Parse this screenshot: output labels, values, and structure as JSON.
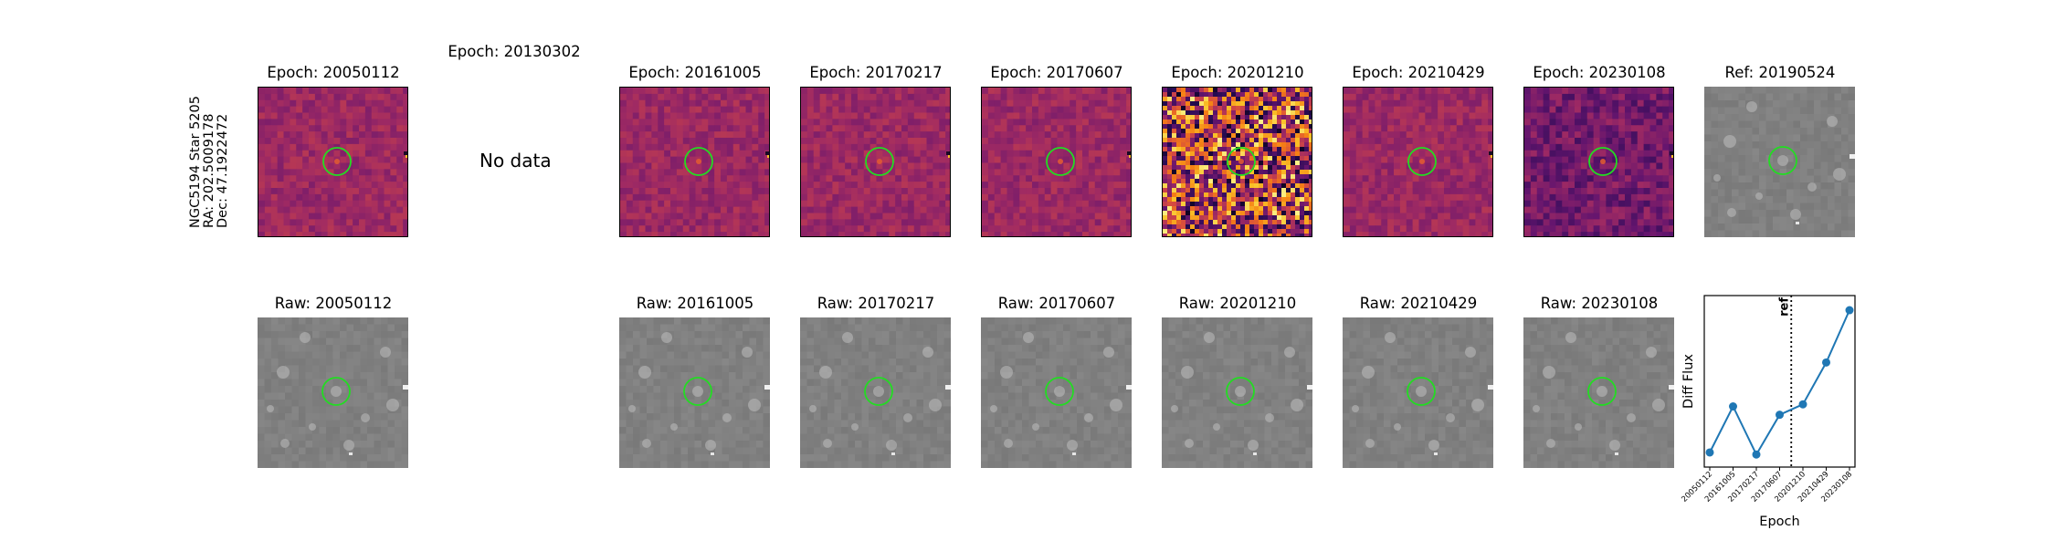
{
  "side_label": {
    "line1": "NGC5194 Star 5205",
    "line2": "RA: 202.5009178",
    "line3": "Dec: 47.1922472"
  },
  "top_row": [
    {
      "title": "Epoch: 20050112",
      "style": "magma",
      "has_data": true
    },
    {
      "title": "Epoch: 20130302",
      "style": "nodata",
      "has_data": false,
      "note": "No data"
    },
    {
      "title": "Epoch: 20161005",
      "style": "magma",
      "has_data": true
    },
    {
      "title": "Epoch: 20170217",
      "style": "magma",
      "has_data": true
    },
    {
      "title": "Epoch: 20170607",
      "style": "magma",
      "has_data": true
    },
    {
      "title": "Epoch: 20201210",
      "style": "magma-noisy",
      "has_data": true
    },
    {
      "title": "Epoch: 20210429",
      "style": "magma",
      "has_data": true
    },
    {
      "title": "Epoch: 20230108",
      "style": "magma",
      "has_data": true
    },
    {
      "title": "Ref: 20190524",
      "style": "gray",
      "has_data": true
    }
  ],
  "bottom_row": [
    {
      "title": "Raw: 20050112"
    },
    {
      "title": "Raw: 20161005"
    },
    {
      "title": "Raw: 20170217"
    },
    {
      "title": "Raw: 20170607"
    },
    {
      "title": "Raw: 20201210"
    },
    {
      "title": "Raw: 20210429"
    },
    {
      "title": "Raw: 20230108"
    }
  ],
  "colors": {
    "marker_circle": "#22dd22",
    "magma_base": "#b4487a",
    "raw_base": "#8a8a8a",
    "line_series": "#1f77b4"
  },
  "chart_data": {
    "type": "line",
    "xlabel": "Epoch",
    "ylabel": "Diff Flux",
    "categories": [
      "20050112",
      "20161005",
      "20170217",
      "20170607",
      "20201210",
      "20210429",
      "20230108"
    ],
    "values": [
      0.3,
      2.5,
      0.2,
      2.1,
      2.6,
      4.6,
      7.1
    ],
    "ylim": [
      -0.4,
      7.8
    ],
    "ref_line": {
      "position": 3.5,
      "label": "ref",
      "style": "dotted"
    },
    "grid": false
  }
}
